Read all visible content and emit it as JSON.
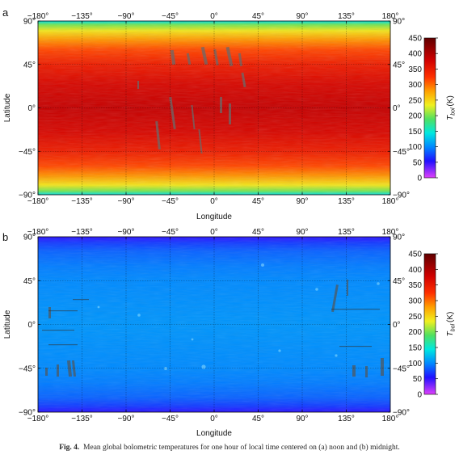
{
  "figure": {
    "caption_label": "Fig. 4.",
    "caption_text": "Mean global bolometric temperatures for one hour of local time centered on (a) noon and (b) midnight."
  },
  "chart_data": [
    {
      "type": "heatmap",
      "panel_label": "a",
      "xlabel": "Longitude",
      "ylabel": "Latitude",
      "xlim": [
        -180,
        180
      ],
      "ylim": [
        -90,
        90
      ],
      "x_ticks": [
        "−180°",
        "−135°",
        "−90°",
        "−45°",
        "0°",
        "45°",
        "90°",
        "135°",
        "180°"
      ],
      "y_ticks": [
        "90°",
        "45°",
        "0°",
        "−45°",
        "−90°"
      ],
      "grid": true,
      "colorbar": {
        "label_main": "T",
        "label_sub": "bol",
        "label_unit": "(K)",
        "range": [
          0,
          450
        ],
        "ticks": [
          "450",
          "400",
          "350",
          "300",
          "250",
          "200",
          "150",
          "100",
          "50",
          "0"
        ]
      },
      "temperature_profile_K": [
        [
          90,
          140
        ],
        [
          86,
          200
        ],
        [
          80,
          240
        ],
        [
          70,
          285
        ],
        [
          60,
          315
        ],
        [
          45,
          345
        ],
        [
          25,
          370
        ],
        [
          0,
          385
        ],
        [
          -25,
          370
        ],
        [
          -45,
          345
        ],
        [
          -60,
          315
        ],
        [
          -70,
          285
        ],
        [
          -80,
          240
        ],
        [
          -86,
          200
        ],
        [
          -90,
          140
        ]
      ]
    },
    {
      "type": "heatmap",
      "panel_label": "b",
      "xlabel": "Longitude",
      "ylabel": "Latitude",
      "xlim": [
        -180,
        180
      ],
      "ylim": [
        -90,
        90
      ],
      "x_ticks": [
        "−180°",
        "−135°",
        "−90°",
        "−45°",
        "0°",
        "45°",
        "90°",
        "135°",
        "180°"
      ],
      "y_ticks": [
        "90°",
        "45°",
        "0°",
        "−45°",
        "−90°"
      ],
      "grid": true,
      "colorbar": {
        "label_main": "T",
        "label_sub": "bol",
        "label_unit": "(K)",
        "range": [
          0,
          450
        ],
        "ticks": [
          "450",
          "400",
          "350",
          "300",
          "250",
          "200",
          "150",
          "100",
          "50",
          "0"
        ]
      },
      "temperature_profile_K": [
        [
          90,
          50
        ],
        [
          84,
          70
        ],
        [
          75,
          85
        ],
        [
          60,
          95
        ],
        [
          45,
          100
        ],
        [
          0,
          105
        ],
        [
          -45,
          100
        ],
        [
          -60,
          95
        ],
        [
          -75,
          85
        ],
        [
          -84,
          70
        ],
        [
          -90,
          50
        ]
      ]
    }
  ]
}
